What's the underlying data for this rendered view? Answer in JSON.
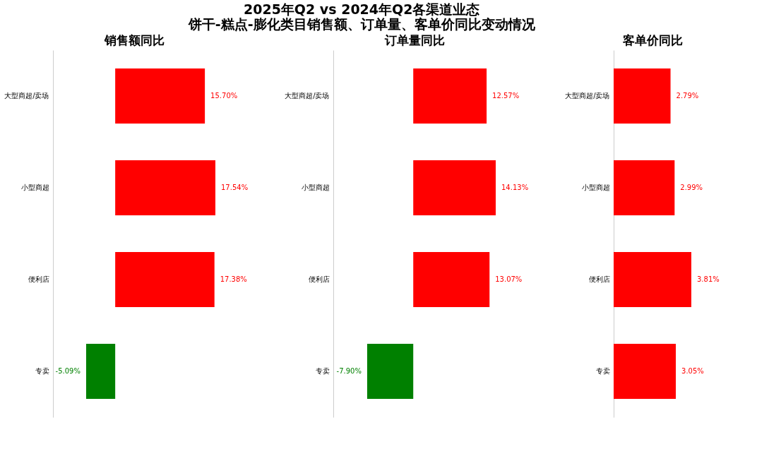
{
  "chart_data": [
    {
      "type": "bar",
      "orientation": "horizontal",
      "title": "销售额同比",
      "annotations": [
        "2025年Q2 vs 2024年Q2各渠道业态",
        "饼干-糕点-膨化类目销售额、订单量、客单价同比变动情况"
      ],
      "categories": [
        "大型商超/卖场",
        "小型商超",
        "便利店",
        "专卖"
      ],
      "values": [
        15.7,
        17.54,
        17.38,
        -5.09
      ],
      "value_labels": [
        "15.70%",
        "17.54%",
        "17.38%",
        "-5.09%"
      ],
      "colors": [
        "#ff0000",
        "#ff0000",
        "#ff0000",
        "#008000"
      ],
      "xlim": [
        -10.9,
        17.54
      ],
      "tick_labels": "y"
    },
    {
      "type": "bar",
      "orientation": "horizontal",
      "title": "订单量同比",
      "categories": [
        "大型商超/卖场",
        "小型商超",
        "便利店",
        "专卖"
      ],
      "values": [
        12.57,
        14.13,
        13.07,
        -7.9
      ],
      "value_labels": [
        "12.57%",
        "14.13%",
        "13.07%",
        "-7.90%"
      ],
      "colors": [
        "#ff0000",
        "#ff0000",
        "#ff0000",
        "#008000"
      ],
      "xlim": [
        -13.7,
        14.13
      ],
      "tick_labels": "y"
    },
    {
      "type": "bar",
      "orientation": "horizontal",
      "title": "客单价同比",
      "categories": [
        "大型商超/卖场",
        "小型商超",
        "便利店",
        "专卖"
      ],
      "values": [
        2.79,
        2.99,
        3.81,
        3.05
      ],
      "value_labels": [
        "2.79%",
        "2.99%",
        "3.81%",
        "3.05%"
      ],
      "colors": [
        "#ff0000",
        "#ff0000",
        "#ff0000",
        "#ff0000"
      ],
      "xlim": [
        0,
        3.81
      ],
      "tick_labels": "y"
    }
  ]
}
